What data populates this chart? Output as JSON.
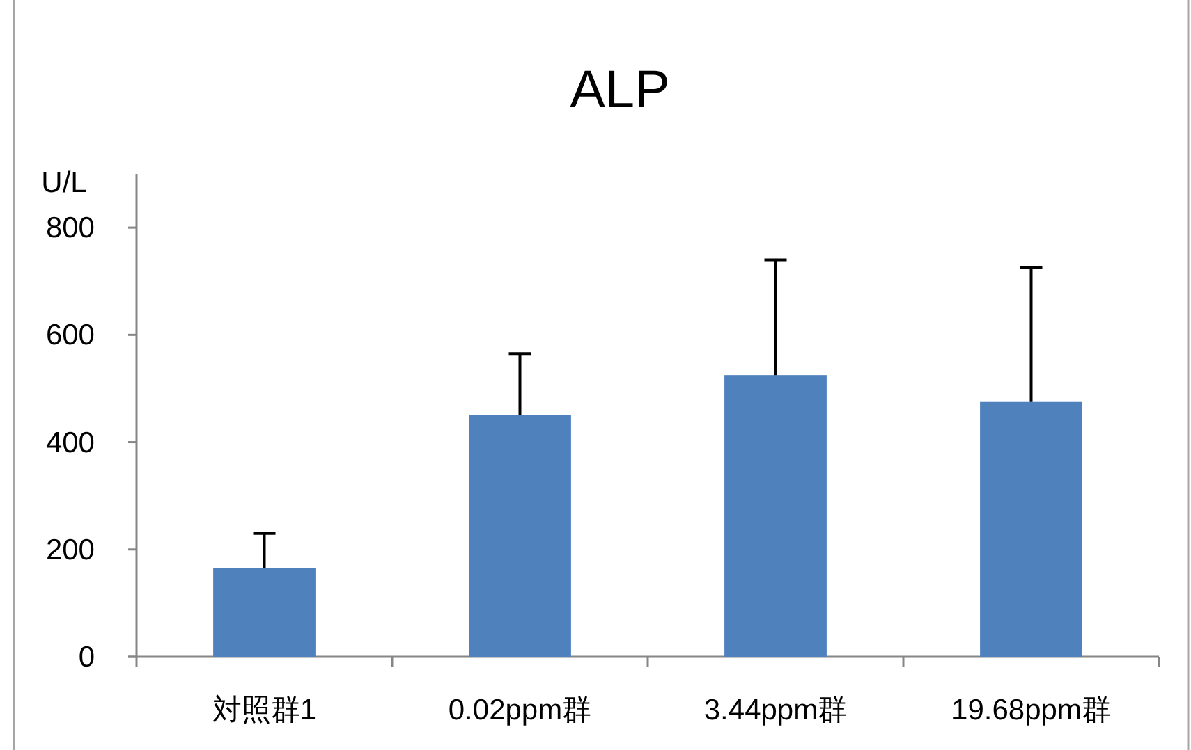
{
  "chart_data": {
    "type": "bar",
    "title": "ALP",
    "ylabel": "U/L",
    "categories": [
      "対照群1",
      "0.02ppm群",
      "3.44ppm群",
      "19.68ppm群"
    ],
    "values": [
      165,
      450,
      525,
      475
    ],
    "errors": [
      [
        165,
        230
      ],
      [
        450,
        565
      ],
      [
        525,
        740
      ],
      [
        475,
        725
      ]
    ],
    "color": "#4f81bd",
    "ylim": [
      0,
      900
    ],
    "yticks": [
      0,
      200,
      400,
      600,
      800
    ]
  }
}
